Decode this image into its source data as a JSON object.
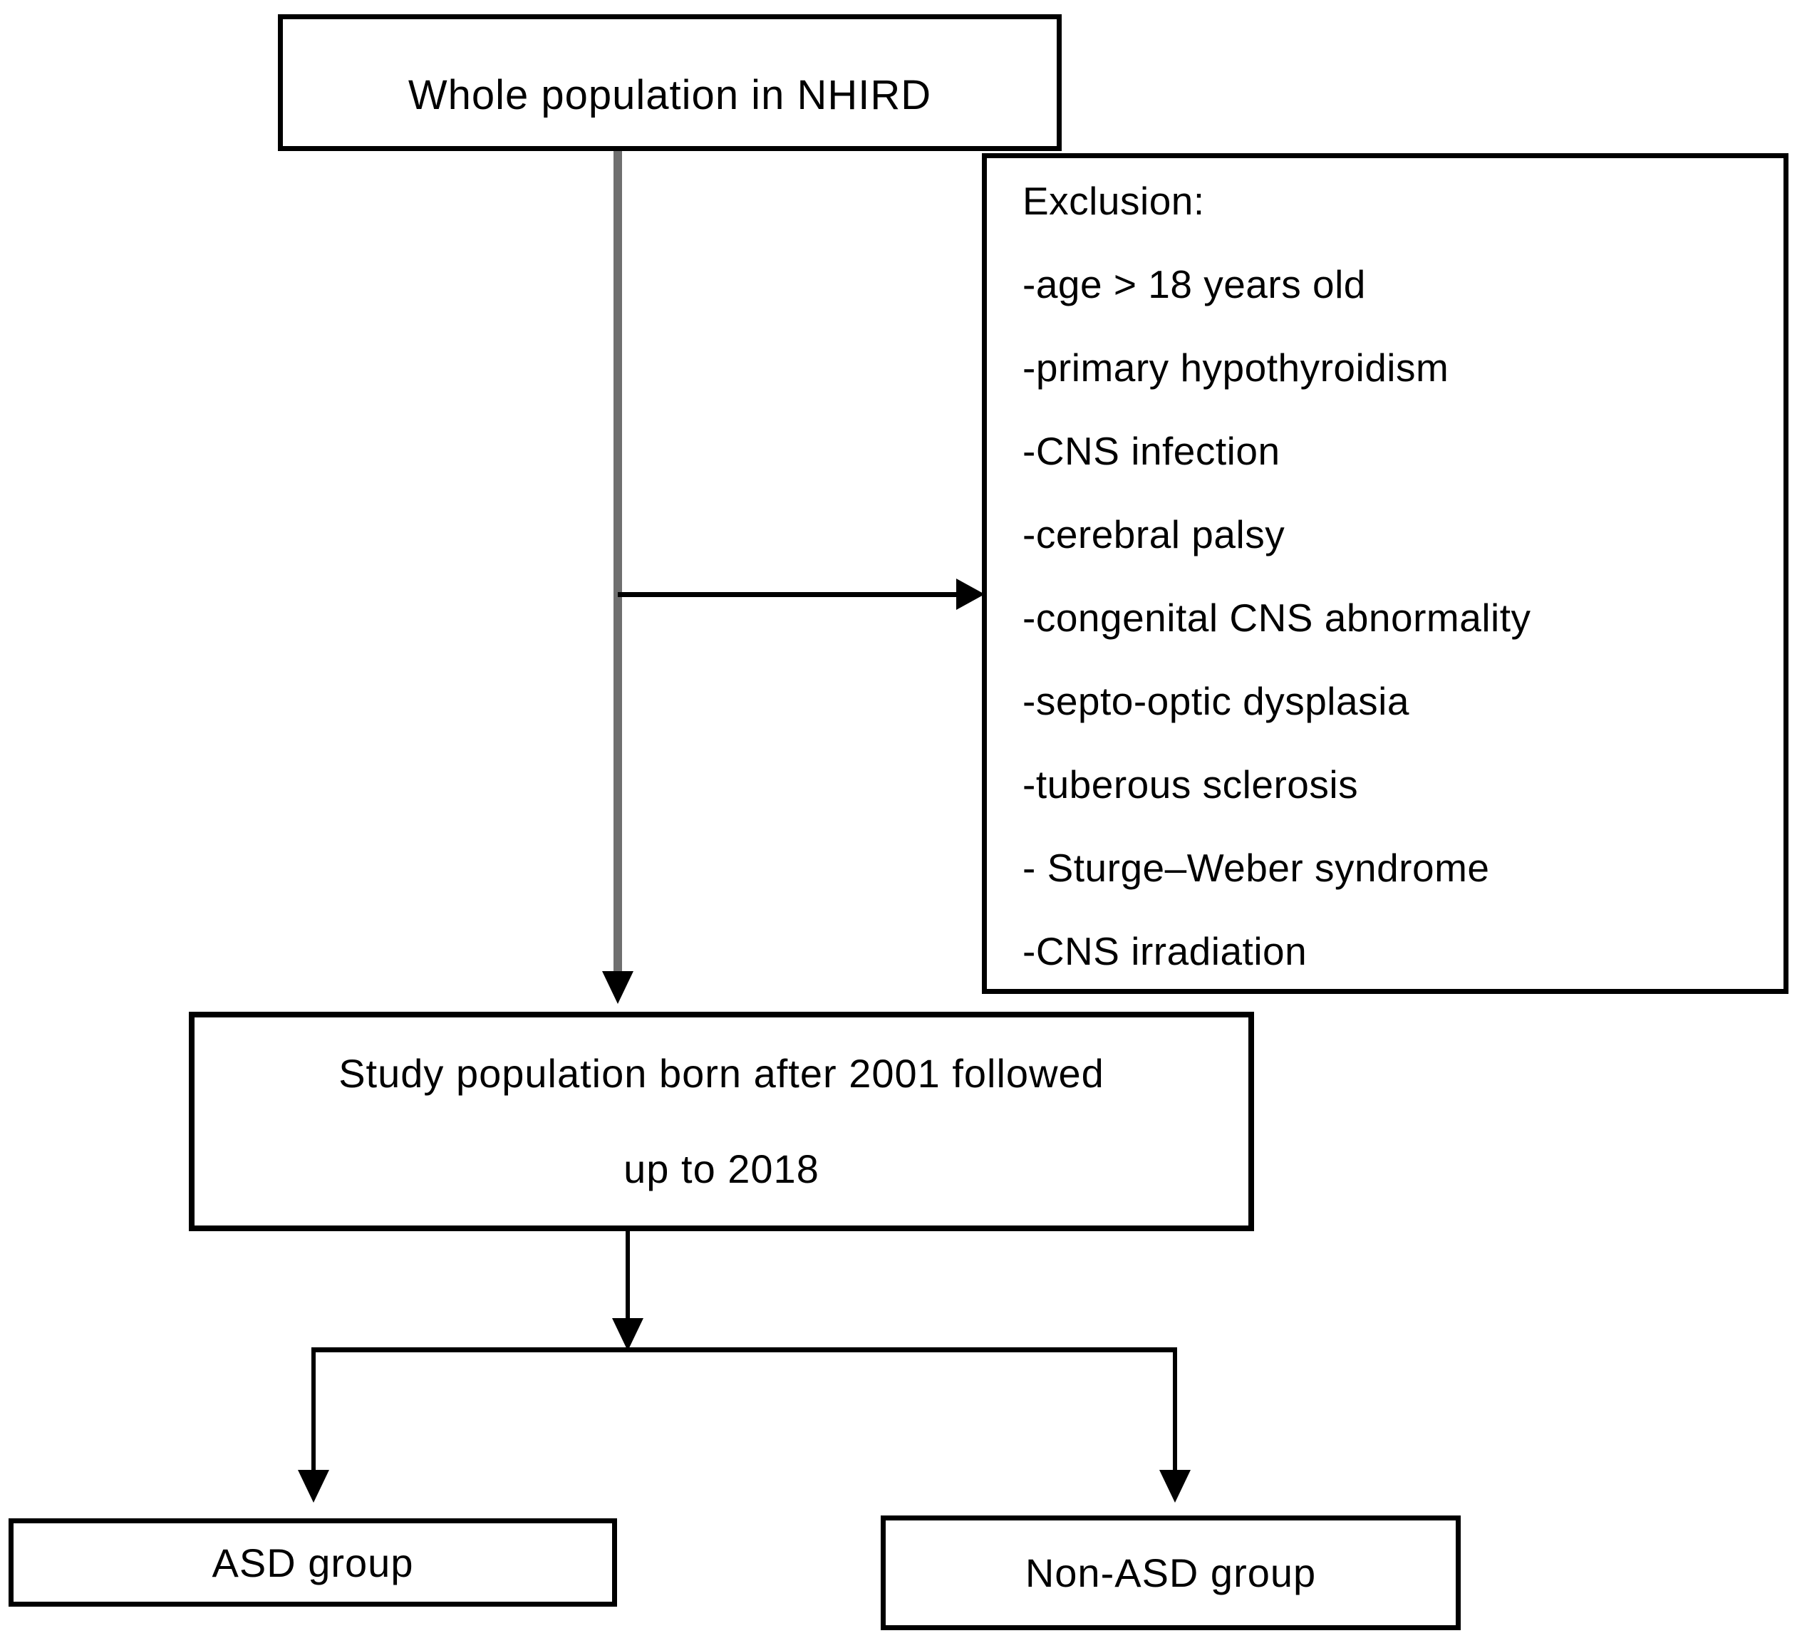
{
  "diagram": {
    "top_box": {
      "label": "Whole population in NHIRD"
    },
    "exclusion_box": {
      "title": "Exclusion:",
      "items": [
        "-age > 18 years old",
        "-primary hypothyroidism",
        "-CNS infection",
        "-cerebral palsy",
        "-congenital CNS abnormality",
        "-septo-optic dysplasia",
        "-tuberous sclerosis",
        "- Sturge–Weber syndrome",
        "-CNS irradiation"
      ]
    },
    "study_box": {
      "line1": "Study population born after 2001 followed",
      "line2": "up to 2018"
    },
    "asd_box": {
      "label": "ASD group"
    },
    "non_asd_box": {
      "label": "Non-ASD group"
    }
  },
  "colors": {
    "background": "#ffffff",
    "text": "#000000",
    "box_border": "#000000",
    "connector_gray": "#6f6f6f",
    "connector_black": "#000000"
  }
}
